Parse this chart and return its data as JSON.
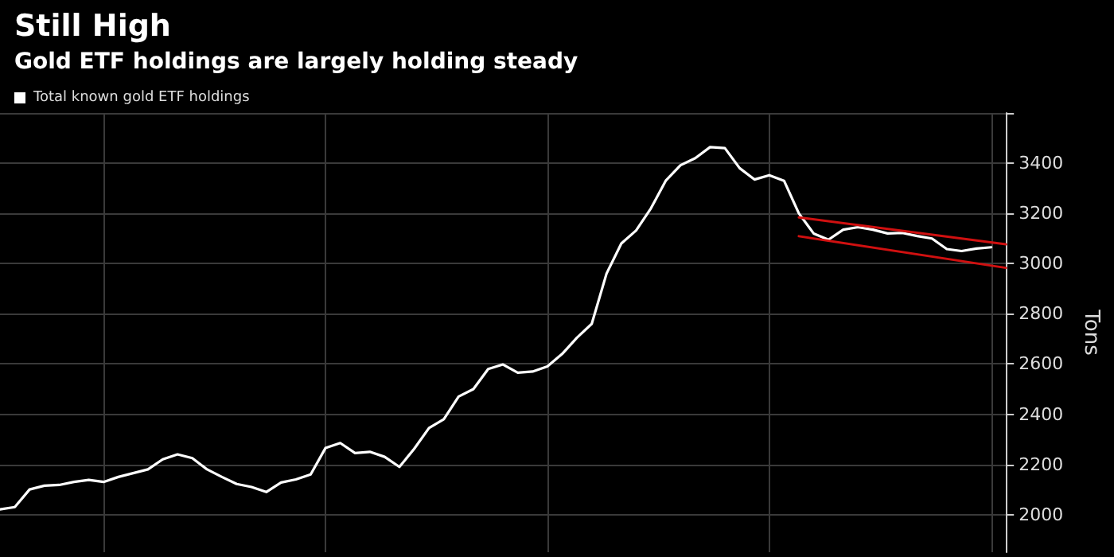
{
  "chart_data": {
    "type": "line",
    "title": "Still High",
    "subtitle": "Gold ETF holdings are largely holding steady",
    "ylabel": "Tons",
    "categories": [
      null,
      null,
      null,
      null,
      null,
      null,
      null,
      null,
      null,
      null,
      null,
      null,
      null,
      null,
      null,
      null,
      null,
      null,
      null,
      null,
      null,
      null,
      null,
      null,
      null,
      null,
      null,
      null,
      null,
      null,
      null,
      null,
      null,
      null,
      null,
      null,
      null,
      null,
      null,
      null,
      null,
      null,
      null,
      null,
      null,
      null,
      null,
      null,
      null,
      null,
      null,
      null,
      null,
      null,
      null,
      null,
      null,
      null,
      null,
      null,
      null,
      null,
      null,
      null,
      null,
      null,
      null,
      null,
      null
    ],
    "series": [
      {
        "name": "Total known gold ETF holdings",
        "color": "#ffffff",
        "values": [
          2021,
          2030,
          2100,
          2115,
          2118,
          2130,
          2138,
          2130,
          2150,
          2165,
          2180,
          2220,
          2240,
          2225,
          2180,
          2150,
          2122,
          2110,
          2090,
          2128,
          2140,
          2160,
          2265,
          2285,
          2245,
          2250,
          2230,
          2190,
          2262,
          2345,
          2380,
          2470,
          2500,
          2580,
          2598,
          2565,
          2570,
          2590,
          2640,
          2705,
          2760,
          2960,
          3080,
          3132,
          3220,
          3330,
          3392,
          3420,
          3464,
          3460,
          3380,
          3335,
          3352,
          3330,
          3200,
          3120,
          3095,
          3135,
          3145,
          3135,
          3120,
          3122,
          3110,
          3100,
          3058,
          3050,
          3060,
          3065,
          null
        ]
      },
      {
        "type": "line",
        "color": "#d01010",
        "values": [
          null,
          null,
          null,
          null,
          null,
          null,
          null,
          null,
          null,
          null,
          null,
          null,
          null,
          null,
          null,
          null,
          null,
          null,
          null,
          null,
          null,
          null,
          null,
          null,
          null,
          null,
          null,
          null,
          null,
          null,
          null,
          null,
          null,
          null,
          null,
          null,
          null,
          null,
          null,
          null,
          null,
          null,
          null,
          null,
          null,
          null,
          null,
          null,
          null,
          null,
          null,
          null,
          null,
          null,
          3184,
          null,
          null,
          null,
          null,
          null,
          null,
          null,
          null,
          null,
          null,
          null,
          null,
          null,
          3077
        ]
      },
      {
        "type": "line",
        "color": "#d01010",
        "values": [
          null,
          null,
          null,
          null,
          null,
          null,
          null,
          null,
          null,
          null,
          null,
          null,
          null,
          null,
          null,
          null,
          null,
          null,
          null,
          null,
          null,
          null,
          null,
          null,
          null,
          null,
          null,
          null,
          null,
          null,
          null,
          null,
          null,
          null,
          null,
          null,
          null,
          null,
          null,
          null,
          null,
          null,
          null,
          null,
          null,
          null,
          null,
          null,
          null,
          null,
          null,
          null,
          null,
          null,
          3109,
          null,
          null,
          null,
          null,
          null,
          null,
          null,
          null,
          null,
          null,
          null,
          null,
          null,
          2983
        ]
      }
    ],
    "ylim": [
      1850,
      3600
    ],
    "yticks": [
      2000,
      2200,
      2400,
      2600,
      2800,
      3000,
      3200,
      3400,
      {
        "value": 3600,
        "label": null
      }
    ],
    "grid": true,
    "legend": "top left",
    "marker": "none",
    "line_style": "solid"
  }
}
